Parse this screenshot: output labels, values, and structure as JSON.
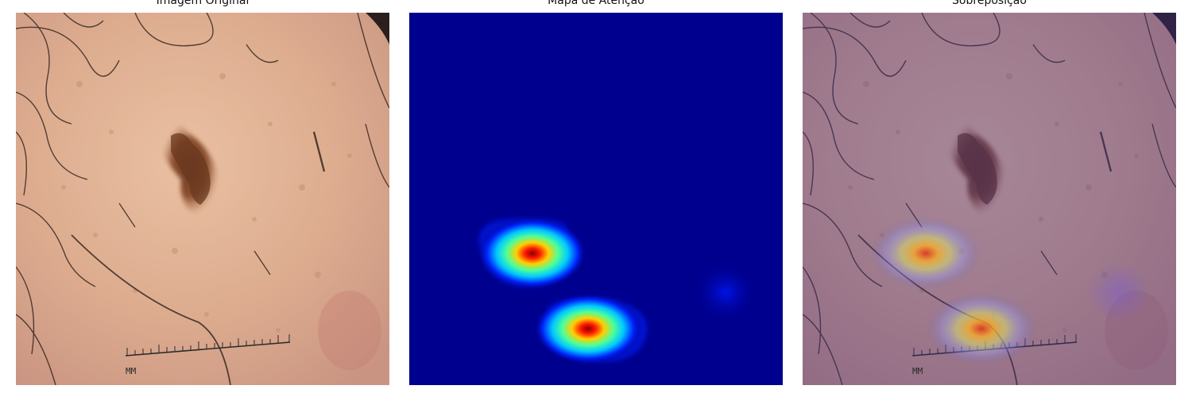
{
  "panels": [
    {
      "title": "Imagem Original"
    },
    {
      "title": "Mapa de Atenção"
    },
    {
      "title": "Sobreposição"
    }
  ],
  "ruler_label": "MM",
  "colors": {
    "skin": "#d9a98c",
    "lesion": "#7a4226",
    "hair": "#3a2a22",
    "attention_background": "#00008f",
    "attention_peak": "#9a0000"
  }
}
